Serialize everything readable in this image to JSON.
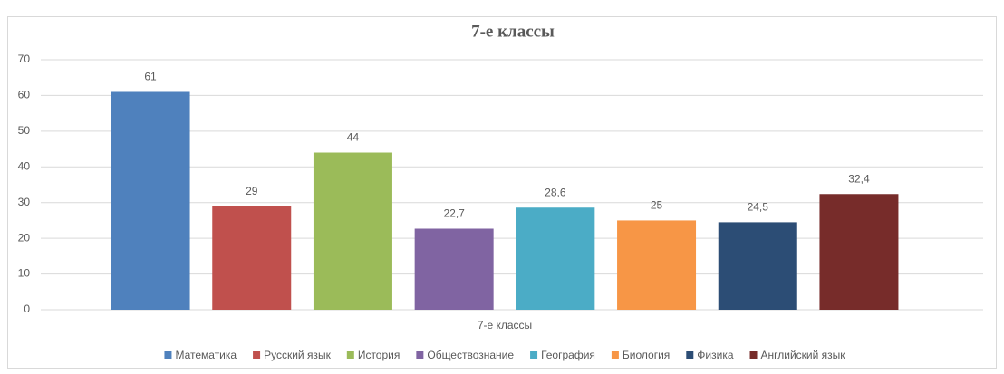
{
  "chart_data": {
    "type": "bar",
    "title": "7-е классы",
    "categories": [
      "7-е классы"
    ],
    "series": [
      {
        "name": "Математика",
        "color": "#4f81bd",
        "values": [
          61
        ]
      },
      {
        "name": "Русский язык",
        "color": "#c0504d",
        "values": [
          29
        ]
      },
      {
        "name": "История",
        "color": "#9bbb59",
        "values": [
          44
        ]
      },
      {
        "name": "Обществознание",
        "color": "#8064a2",
        "values": [
          22.7
        ],
        "value_labels": [
          "22,7"
        ]
      },
      {
        "name": "География",
        "color": "#4bacc6",
        "values": [
          28.6
        ],
        "value_labels": [
          "28,6"
        ]
      },
      {
        "name": "Биология",
        "color": "#f79646",
        "values": [
          25
        ]
      },
      {
        "name": "Физика",
        "color": "#2c4d75",
        "values": [
          24.5
        ],
        "value_labels": [
          "24,5"
        ]
      },
      {
        "name": "Английский язык",
        "color": "#772c2a",
        "values": [
          32.4
        ],
        "value_labels": [
          "32,4"
        ]
      }
    ],
    "ylim": [
      0,
      70
    ],
    "yticks": [
      0,
      10,
      20,
      30,
      40,
      50,
      60,
      70
    ],
    "grid": true,
    "legend": "bottom"
  }
}
